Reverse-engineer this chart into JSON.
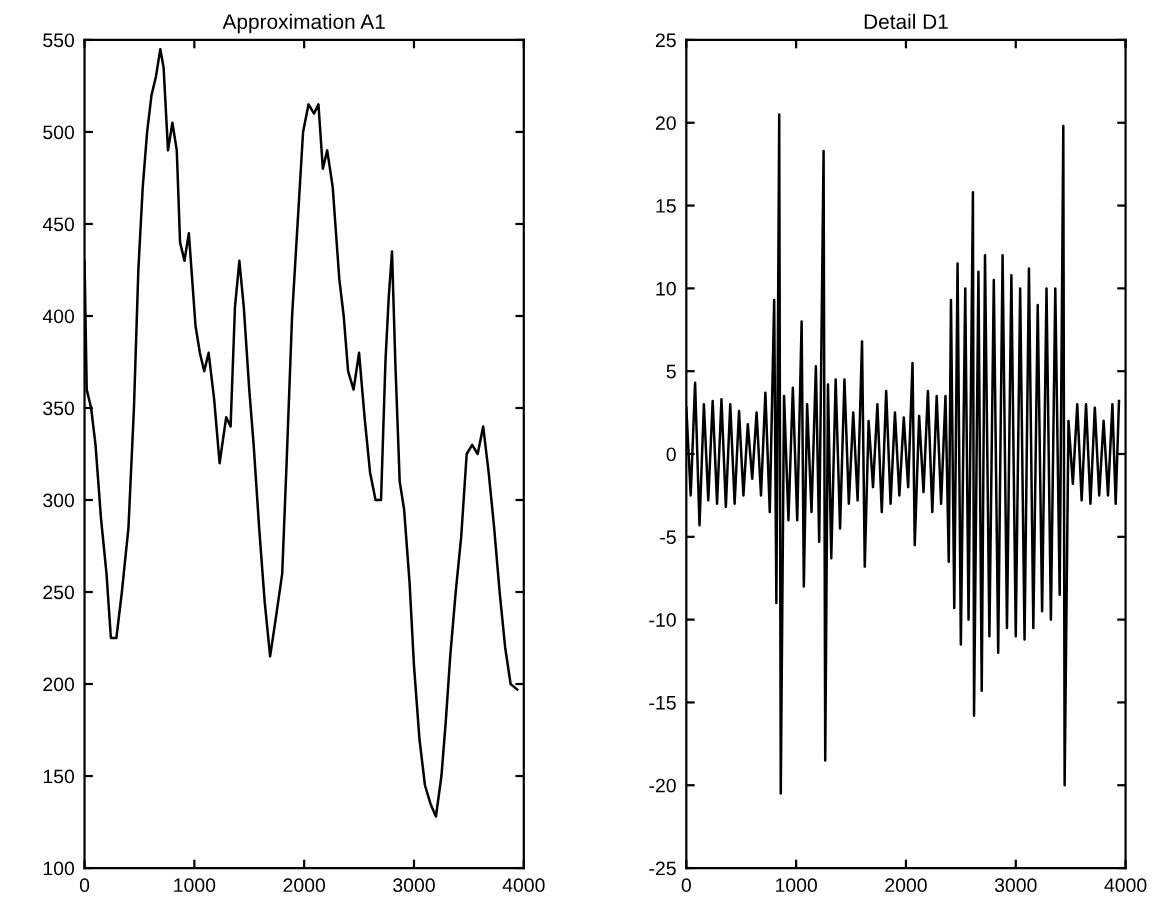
{
  "chart_data": [
    {
      "type": "line",
      "title": "Approximation A1",
      "xlim": [
        0,
        4000
      ],
      "xticks": [
        0,
        1000,
        2000,
        3000,
        4000
      ],
      "ylim": [
        100,
        550
      ],
      "yticks": [
        100,
        150,
        200,
        250,
        300,
        350,
        400,
        450,
        500,
        550
      ],
      "series": [
        {
          "color": "#000000",
          "x": [
            0,
            20,
            60,
            100,
            150,
            200,
            240,
            290,
            340,
            400,
            450,
            490,
            530,
            570,
            610,
            650,
            690,
            720,
            760,
            800,
            840,
            870,
            910,
            950,
            980,
            1010,
            1050,
            1090,
            1130,
            1180,
            1230,
            1290,
            1330,
            1370,
            1410,
            1450,
            1500,
            1540,
            1590,
            1640,
            1690,
            1740,
            1800,
            1840,
            1890,
            1940,
            1990,
            2040,
            2090,
            2130,
            2170,
            2210,
            2260,
            2320,
            2360,
            2400,
            2450,
            2500,
            2550,
            2600,
            2650,
            2700,
            2740,
            2770,
            2800,
            2830,
            2870,
            2910,
            2960,
            3000,
            3050,
            3100,
            3150,
            3200,
            3250,
            3290,
            3330,
            3380,
            3430,
            3480,
            3530,
            3580,
            3630,
            3680,
            3730,
            3780,
            3830,
            3880,
            3940
          ],
          "values": [
            430,
            360,
            350,
            330,
            290,
            260,
            225,
            225,
            250,
            285,
            350,
            425,
            470,
            500,
            520,
            530,
            545,
            535,
            490,
            505,
            490,
            440,
            430,
            445,
            420,
            395,
            380,
            370,
            380,
            355,
            320,
            345,
            340,
            405,
            430,
            405,
            360,
            330,
            285,
            245,
            215,
            235,
            260,
            320,
            400,
            450,
            500,
            515,
            510,
            515,
            480,
            490,
            470,
            420,
            400,
            370,
            360,
            380,
            345,
            315,
            300,
            300,
            375,
            410,
            435,
            375,
            310,
            295,
            255,
            210,
            170,
            145,
            135,
            128,
            150,
            180,
            215,
            250,
            280,
            325,
            330,
            325,
            340,
            315,
            285,
            250,
            220,
            200,
            197
          ]
        }
      ]
    },
    {
      "type": "line",
      "title": "Detail D1",
      "xlim": [
        0,
        4000
      ],
      "xticks": [
        0,
        1000,
        2000,
        3000,
        4000
      ],
      "ylim": [
        -25,
        25
      ],
      "yticks": [
        -25,
        -20,
        -15,
        -10,
        -5,
        0,
        5,
        10,
        15,
        20,
        25
      ],
      "series": [
        {
          "color": "#000000",
          "x": [
            0,
            40,
            80,
            120,
            160,
            200,
            240,
            280,
            320,
            360,
            400,
            440,
            480,
            520,
            560,
            600,
            640,
            680,
            720,
            760,
            800,
            820,
            846,
            860,
            890,
            930,
            970,
            1010,
            1050,
            1070,
            1100,
            1140,
            1180,
            1210,
            1250,
            1265,
            1290,
            1320,
            1360,
            1400,
            1440,
            1480,
            1520,
            1560,
            1600,
            1625,
            1660,
            1700,
            1740,
            1780,
            1820,
            1860,
            1900,
            1940,
            1980,
            2020,
            2060,
            2080,
            2120,
            2160,
            2200,
            2240,
            2280,
            2320,
            2360,
            2390,
            2410,
            2440,
            2470,
            2500,
            2540,
            2570,
            2610,
            2620,
            2660,
            2690,
            2720,
            2760,
            2800,
            2840,
            2880,
            2920,
            2960,
            3000,
            3040,
            3080,
            3120,
            3160,
            3200,
            3240,
            3280,
            3320,
            3360,
            3400,
            3433,
            3445,
            3480,
            3520,
            3560,
            3600,
            3640,
            3680,
            3720,
            3760,
            3800,
            3840,
            3880,
            3910,
            3940
          ],
          "values": [
            2.8,
            -2.5,
            4.3,
            -4.3,
            3.0,
            -2.8,
            3.2,
            -3.0,
            3.3,
            -3.2,
            3.0,
            -3.0,
            2.6,
            -2.5,
            1.8,
            -1.5,
            2.5,
            -2.5,
            3.7,
            -3.5,
            9.3,
            -9.0,
            20.5,
            -20.5,
            3.5,
            -4.0,
            4.0,
            -4.0,
            8.0,
            -8.0,
            3.0,
            -3.5,
            5.3,
            -5.3,
            18.3,
            -18.5,
            4.2,
            -6.3,
            4.5,
            -4.5,
            4.5,
            -3.0,
            2.5,
            -2.8,
            6.8,
            -6.8,
            2.0,
            -2.0,
            3.0,
            -3.5,
            3.8,
            -3.0,
            2.5,
            -2.5,
            2.2,
            -2.0,
            5.5,
            -5.5,
            2.3,
            -2.3,
            3.8,
            -3.5,
            3.5,
            -3.0,
            3.5,
            -6.5,
            9.3,
            -9.3,
            11.5,
            -11.5,
            10.0,
            -10.0,
            15.8,
            -15.8,
            11.0,
            -14.3,
            12.0,
            -11.0,
            10.5,
            -12.0,
            12.0,
            -10.5,
            10.8,
            -11.0,
            10.0,
            -11.2,
            11.2,
            -10.5,
            9.0,
            -9.5,
            10.0,
            -10.0,
            10.0,
            -8.5,
            19.8,
            -20.0,
            2.0,
            -1.8,
            3.0,
            -2.8,
            3.0,
            -3.0,
            2.8,
            -2.5,
            2.0,
            -2.5,
            3.0,
            -3.0,
            3.2
          ]
        }
      ]
    }
  ]
}
